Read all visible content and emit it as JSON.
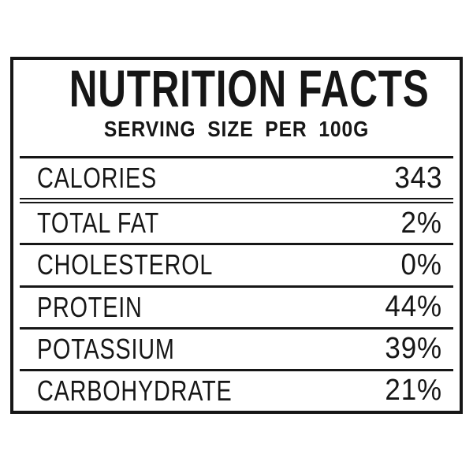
{
  "label": {
    "title": "NUTRITION FACTS",
    "subtitle": "SERVING SIZE PER 100G",
    "rows": [
      {
        "name": "CALORIES",
        "value": "343"
      },
      {
        "name": "TOTAL FAT",
        "value": "2%"
      },
      {
        "name": "CHOLESTEROL",
        "value": "0%"
      },
      {
        "name": "PROTEIN",
        "value": "44%"
      },
      {
        "name": "POTASSIUM",
        "value": "39%"
      },
      {
        "name": "CARBOHYDRATE",
        "value": "21%"
      }
    ],
    "colors": {
      "text": "#161616",
      "border": "#161616",
      "background": "#ffffff"
    }
  }
}
